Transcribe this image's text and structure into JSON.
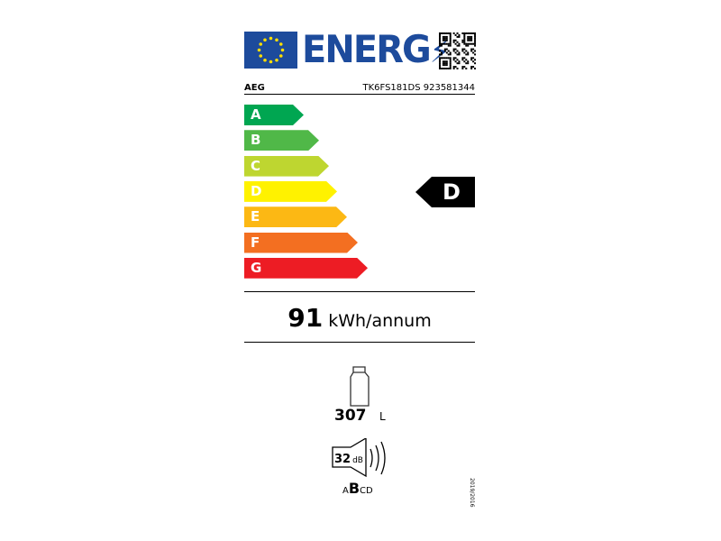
{
  "header": {
    "title": "ENERG",
    "brand": "AEG",
    "model": "TK6FS181DS 923581344"
  },
  "scale": {
    "classes": [
      {
        "label": "A",
        "color": "#00a651"
      },
      {
        "label": "B",
        "color": "#50b848"
      },
      {
        "label": "C",
        "color": "#bed630"
      },
      {
        "label": "D",
        "color": "#fff200"
      },
      {
        "label": "E",
        "color": "#fcb814"
      },
      {
        "label": "F",
        "color": "#f36f21"
      },
      {
        "label": "G",
        "color": "#ed1c24"
      }
    ],
    "rated_class": "D"
  },
  "energy": {
    "value": "91",
    "unit": "kWh/annum"
  },
  "volume": {
    "value": "307",
    "unit": "L",
    "icon": "bottle-icon"
  },
  "noise": {
    "value": "32",
    "unit": "dB",
    "class_pre": "A",
    "class_sel": "B",
    "class_post": "CD",
    "icon": "speaker-icon"
  },
  "regulation": "2019/2016"
}
